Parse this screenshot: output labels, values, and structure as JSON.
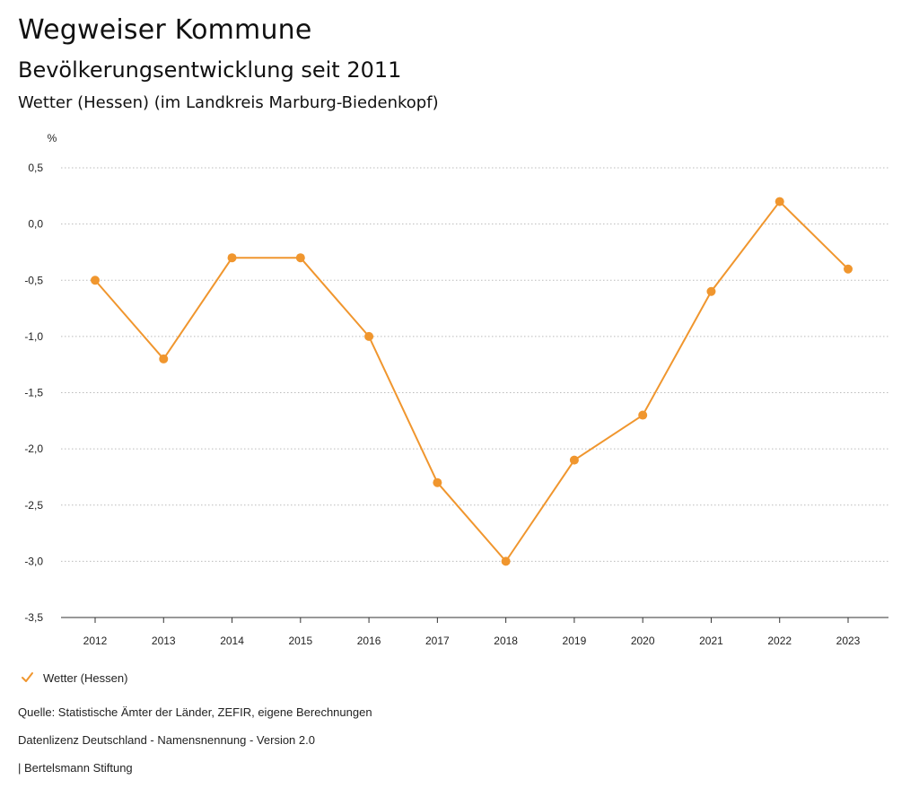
{
  "header": {
    "title": "Wegweiser Kommune",
    "subtitle": "Bevölkerungsentwicklung seit 2011",
    "region": "Wetter (Hessen) (im Landkreis Marburg-Biedenkopf)"
  },
  "chart_data": {
    "type": "line",
    "ylabel": "%",
    "xlabel": "",
    "ylim": [
      -3.5,
      0.5
    ],
    "y_ticks": [
      0.5,
      0.0,
      -0.5,
      -1.0,
      -1.5,
      -2.0,
      -2.5,
      -3.0,
      -3.5
    ],
    "y_tick_labels": [
      "0,5",
      "0,0",
      "-0,5",
      "-1,0",
      "-1,5",
      "-2,0",
      "-2,5",
      "-3,0",
      "-3,5"
    ],
    "categories": [
      "2012",
      "2013",
      "2014",
      "2015",
      "2016",
      "2017",
      "2018",
      "2019",
      "2020",
      "2021",
      "2022",
      "2023"
    ],
    "series": [
      {
        "name": "Wetter (Hessen)",
        "color": "#f0962e",
        "values": [
          -0.5,
          -1.2,
          -0.3,
          -0.3,
          -1.0,
          -2.3,
          -3.0,
          -2.1,
          -1.7,
          -0.6,
          0.2,
          -0.4
        ]
      }
    ],
    "grid": true,
    "legend": "bottom-left",
    "colors": {
      "series": "#f0962e",
      "grid": "#bbbbbb",
      "axis": "#333333"
    }
  },
  "legend": {
    "icon": "checkmark-icon",
    "label": "Wetter (Hessen)"
  },
  "footer": {
    "source": "Quelle: Statistische Ämter der Länder, ZEFIR, eigene Berechnungen",
    "license": "Datenlizenz Deutschland - Namensnennung - Version 2.0",
    "publisher": "| Bertelsmann Stiftung"
  }
}
